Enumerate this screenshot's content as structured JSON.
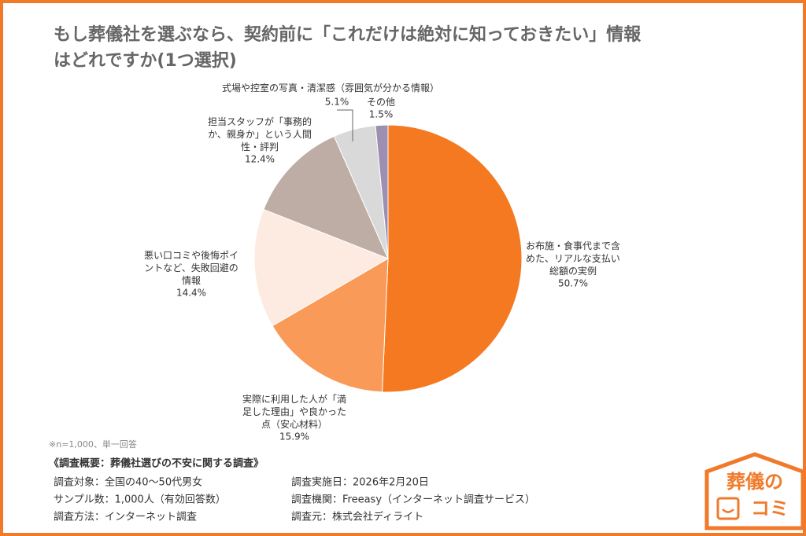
{
  "chart_data": {
    "type": "pie",
    "title": [
      "もし葬儀社を選ぶなら、契約前に「これだけは絶対に知っておきたい」情報",
      "はどれですか(1つ選択)"
    ],
    "categories": [
      "お布施・食事代まで含めた、リアルな支払い総額の実例",
      "実際に利用した人が「満足した理由」や良かった点（安心材料）",
      "悪い口コミや後悔ポイントなど、失敗回避の情報",
      "担当スタッフが「事務的か、親身か」という人間性・評判",
      "式場や控室の写真・清潔感（雰囲気が分かる情報）",
      "その他"
    ],
    "values": [
      50.7,
      15.9,
      14.4,
      12.4,
      5.1,
      1.5
    ],
    "value_labels": [
      "50.7%",
      "15.9%",
      "14.4%",
      "12.4%",
      "5.1%",
      "1.5%"
    ],
    "colors": [
      "#f47920",
      "#f99a58",
      "#fdeae0",
      "#bdada5",
      "#d9d9d9",
      "#9d8fb0"
    ],
    "note": "※n=1,000、単一回答"
  },
  "survey": {
    "heading": "《調査概要：葬儀社選びの不安に関する調査》",
    "left": [
      "調査対象：全国の40～50代男女",
      "サンプル数：1,000人（有効回答数）",
      "調査方法：インターネット調査"
    ],
    "right": [
      "調査実施日：2026年2月20日",
      "調査機関：Freeasy（インターネット調査サービス）",
      "調査元：株式会社ディライト"
    ]
  },
  "logo": {
    "line1": "葬儀の",
    "line2": "コミ"
  }
}
